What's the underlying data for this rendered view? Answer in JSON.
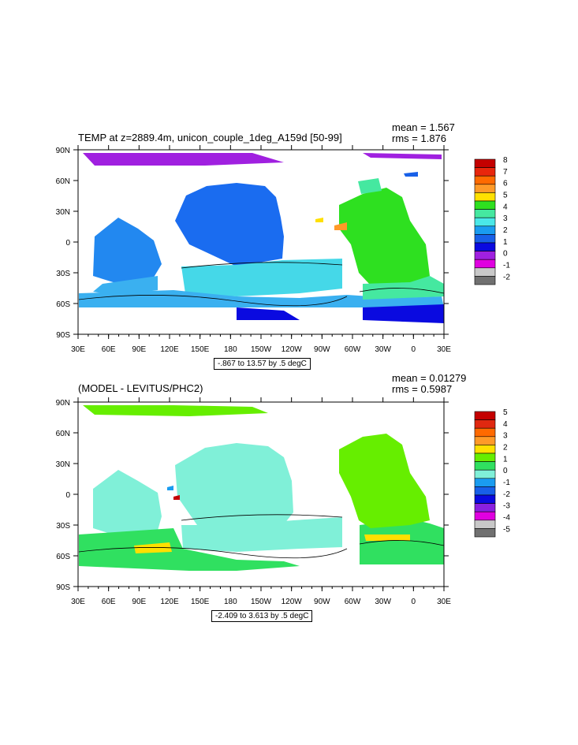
{
  "panels": [
    {
      "title": "TEMP at z=2889.4m, unicon_couple_1deg_A159d [50-99]",
      "mean": "mean = 1.567",
      "rms": "rms = 1.876",
      "footer": "-.867 to 13.57 by .5 degC",
      "colorbar": {
        "labels": [
          "8",
          "7",
          "6",
          "5",
          "4",
          "3",
          "2",
          "1",
          "0",
          "-1",
          "-2"
        ],
        "colors": [
          "#c40000",
          "#e8260c",
          "#ff6a00",
          "#ff9a28",
          "#ffe000",
          "#2ee020",
          "#45e8a0",
          "#4ae8e8",
          "#1a9cf0",
          "#1860e8",
          "#0a0ae0",
          "#a020e0",
          "#e000e0",
          "#c8c8c8",
          "#707070"
        ]
      }
    },
    {
      "title": "(MODEL - LEVITUS/PHC2)",
      "mean": "mean = 0.01279",
      "rms": "rms = 0.5987",
      "footer": "-2.409 to 3.613 by .5 degC",
      "colorbar": {
        "labels": [
          "5",
          "4",
          "3",
          "2",
          "1",
          "0",
          "-1",
          "-2",
          "-3",
          "-4",
          "-5"
        ],
        "colors": [
          "#c40000",
          "#e02810",
          "#ff6a00",
          "#ff9a28",
          "#ffe000",
          "#66ee00",
          "#30e060",
          "#80f0d8",
          "#1a9cf0",
          "#1860e8",
          "#0a0ae0",
          "#8a20e0",
          "#e000e0",
          "#c8c8c8",
          "#707070"
        ]
      }
    }
  ],
  "axes": {
    "x_ticks": [
      "30E",
      "60E",
      "90E",
      "120E",
      "150E",
      "180",
      "150W",
      "120W",
      "90W",
      "60W",
      "30W",
      "0",
      "30E"
    ],
    "y_ticks": [
      "90N",
      "60N",
      "30N",
      "0",
      "30S",
      "60S",
      "90S"
    ]
  },
  "colors": {
    "land": "#ffffff",
    "frame": "#000000"
  }
}
